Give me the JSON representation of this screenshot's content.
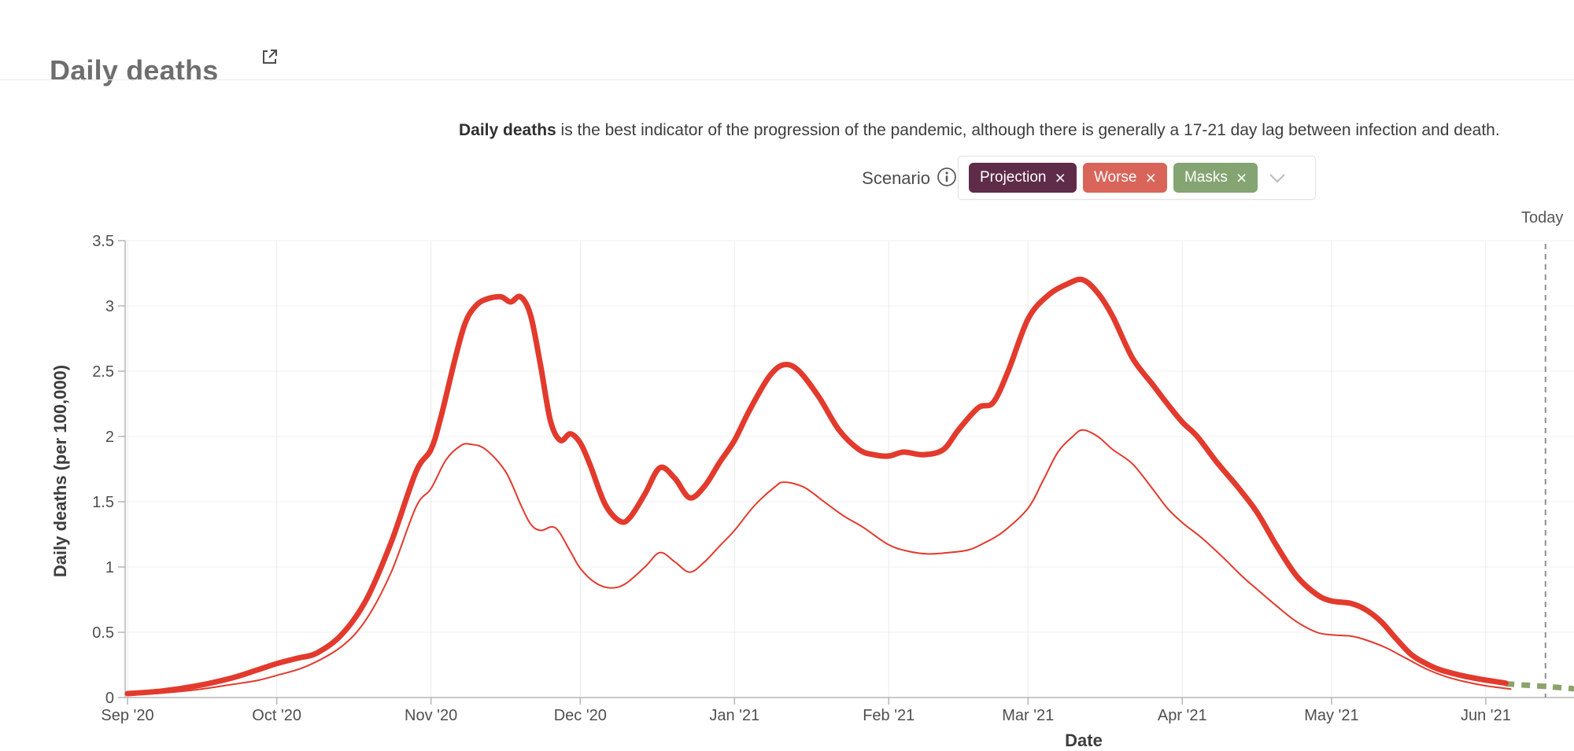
{
  "header": {
    "title": "Daily deaths"
  },
  "description": {
    "bold": "Daily deaths",
    "rest": " is the best indicator of the progression of the pandemic, although there is generally a 17-21 day lag between infection and death."
  },
  "scenario": {
    "label": "Scenario",
    "tags": [
      {
        "label": "Projection",
        "remove_icon": "×",
        "color": "#5e2b49"
      },
      {
        "label": "Worse",
        "remove_icon": "×",
        "color": "#d9655a"
      },
      {
        "label": "Masks",
        "remove_icon": "×",
        "color": "#84a471"
      }
    ]
  },
  "chart_data": {
    "type": "line",
    "title": "Daily deaths",
    "xlabel": "Date",
    "ylabel": "Daily deaths (per 100,000)",
    "ylim": [
      0,
      3.5
    ],
    "yticks": [
      0,
      0.5,
      1,
      1.5,
      2,
      2.5,
      3,
      3.5
    ],
    "grid": true,
    "today_label": "Today",
    "today_day": 285,
    "x_ticks": [
      {
        "label": "Sep '20",
        "day": 0
      },
      {
        "label": "Oct '20",
        "day": 30
      },
      {
        "label": "Nov '20",
        "day": 61
      },
      {
        "label": "Dec '20",
        "day": 91
      },
      {
        "label": "Jan '21",
        "day": 122
      },
      {
        "label": "Feb '21",
        "day": 153
      },
      {
        "label": "Mar '21",
        "day": 181
      },
      {
        "label": "Apr '21",
        "day": 212
      },
      {
        "label": "May '21",
        "day": 242
      },
      {
        "label": "Jun '21",
        "day": 273
      }
    ],
    "series": [
      {
        "name": "Masks",
        "color": "#8da26b",
        "style": "dashed-thick",
        "points": [
          [
            277,
            0.105
          ],
          [
            281,
            0.095
          ],
          [
            285,
            0.085
          ],
          [
            289,
            0.073
          ],
          [
            292,
            0.062
          ]
        ]
      },
      {
        "name": "Projection",
        "color": "#e23a2d",
        "style": "solid-thin",
        "points": [
          [
            0,
            0.02
          ],
          [
            7,
            0.035
          ],
          [
            14,
            0.06
          ],
          [
            21,
            0.1
          ],
          [
            26,
            0.13
          ],
          [
            30,
            0.17
          ],
          [
            36,
            0.24
          ],
          [
            43,
            0.39
          ],
          [
            48,
            0.6
          ],
          [
            53,
            0.96
          ],
          [
            58,
            1.46
          ],
          [
            61,
            1.6
          ],
          [
            64,
            1.82
          ],
          [
            67,
            1.93
          ],
          [
            69,
            1.94
          ],
          [
            72,
            1.9
          ],
          [
            76,
            1.73
          ],
          [
            79,
            1.48
          ],
          [
            81,
            1.33
          ],
          [
            83,
            1.28
          ],
          [
            86,
            1.3
          ],
          [
            89,
            1.12
          ],
          [
            91,
            0.99
          ],
          [
            94,
            0.88
          ],
          [
            97,
            0.84
          ],
          [
            100,
            0.87
          ],
          [
            104,
            1.0
          ],
          [
            107,
            1.11
          ],
          [
            110,
            1.04
          ],
          [
            113,
            0.96
          ],
          [
            116,
            1.04
          ],
          [
            119,
            1.16
          ],
          [
            122,
            1.28
          ],
          [
            126,
            1.47
          ],
          [
            130,
            1.61
          ],
          [
            132,
            1.65
          ],
          [
            136,
            1.61
          ],
          [
            140,
            1.5
          ],
          [
            144,
            1.39
          ],
          [
            148,
            1.3
          ],
          [
            153,
            1.17
          ],
          [
            157,
            1.12
          ],
          [
            161,
            1.1
          ],
          [
            165,
            1.11
          ],
          [
            169,
            1.13
          ],
          [
            172,
            1.18
          ],
          [
            176,
            1.27
          ],
          [
            181,
            1.45
          ],
          [
            184,
            1.66
          ],
          [
            187,
            1.88
          ],
          [
            190,
            2.0
          ],
          [
            192,
            2.05
          ],
          [
            195,
            2.0
          ],
          [
            198,
            1.9
          ],
          [
            202,
            1.79
          ],
          [
            206,
            1.6
          ],
          [
            209,
            1.45
          ],
          [
            212,
            1.34
          ],
          [
            216,
            1.22
          ],
          [
            220,
            1.08
          ],
          [
            224,
            0.93
          ],
          [
            227,
            0.83
          ],
          [
            231,
            0.7
          ],
          [
            235,
            0.58
          ],
          [
            239,
            0.5
          ],
          [
            242,
            0.48
          ],
          [
            246,
            0.47
          ],
          [
            249,
            0.44
          ],
          [
            253,
            0.38
          ],
          [
            257,
            0.3
          ],
          [
            261,
            0.22
          ],
          [
            265,
            0.16
          ],
          [
            269,
            0.12
          ],
          [
            273,
            0.09
          ],
          [
            278,
            0.065
          ]
        ]
      },
      {
        "name": "Worse",
        "color": "#e23a2d",
        "style": "solid-thick",
        "points": [
          [
            0,
            0.03
          ],
          [
            7,
            0.05
          ],
          [
            14,
            0.09
          ],
          [
            21,
            0.15
          ],
          [
            26,
            0.21
          ],
          [
            30,
            0.26
          ],
          [
            34,
            0.3
          ],
          [
            38,
            0.34
          ],
          [
            43,
            0.48
          ],
          [
            48,
            0.75
          ],
          [
            53,
            1.19
          ],
          [
            58,
            1.73
          ],
          [
            61,
            1.9
          ],
          [
            63,
            2.15
          ],
          [
            66,
            2.62
          ],
          [
            68,
            2.88
          ],
          [
            70,
            3.0
          ],
          [
            72,
            3.05
          ],
          [
            75,
            3.07
          ],
          [
            77,
            3.03
          ],
          [
            79,
            3.07
          ],
          [
            81,
            2.93
          ],
          [
            83,
            2.55
          ],
          [
            85,
            2.12
          ],
          [
            87,
            1.97
          ],
          [
            89,
            2.02
          ],
          [
            91,
            1.95
          ],
          [
            93,
            1.78
          ],
          [
            96,
            1.48
          ],
          [
            99,
            1.35
          ],
          [
            101,
            1.38
          ],
          [
            104,
            1.56
          ],
          [
            107,
            1.76
          ],
          [
            110,
            1.68
          ],
          [
            113,
            1.53
          ],
          [
            116,
            1.62
          ],
          [
            119,
            1.8
          ],
          [
            122,
            1.97
          ],
          [
            125,
            2.2
          ],
          [
            129,
            2.46
          ],
          [
            132,
            2.55
          ],
          [
            135,
            2.5
          ],
          [
            139,
            2.3
          ],
          [
            143,
            2.05
          ],
          [
            147,
            1.9
          ],
          [
            150,
            1.86
          ],
          [
            153,
            1.85
          ],
          [
            156,
            1.88
          ],
          [
            160,
            1.86
          ],
          [
            164,
            1.9
          ],
          [
            167,
            2.05
          ],
          [
            171,
            2.22
          ],
          [
            174,
            2.26
          ],
          [
            177,
            2.5
          ],
          [
            181,
            2.9
          ],
          [
            185,
            3.08
          ],
          [
            189,
            3.17
          ],
          [
            192,
            3.2
          ],
          [
            195,
            3.1
          ],
          [
            198,
            2.92
          ],
          [
            202,
            2.6
          ],
          [
            206,
            2.4
          ],
          [
            209,
            2.25
          ],
          [
            212,
            2.11
          ],
          [
            215,
            2.0
          ],
          [
            219,
            1.8
          ],
          [
            223,
            1.62
          ],
          [
            227,
            1.42
          ],
          [
            231,
            1.16
          ],
          [
            235,
            0.93
          ],
          [
            239,
            0.79
          ],
          [
            242,
            0.74
          ],
          [
            246,
            0.72
          ],
          [
            249,
            0.67
          ],
          [
            252,
            0.58
          ],
          [
            255,
            0.45
          ],
          [
            258,
            0.33
          ],
          [
            261,
            0.26
          ],
          [
            264,
            0.21
          ],
          [
            268,
            0.17
          ],
          [
            272,
            0.14
          ],
          [
            277,
            0.11
          ]
        ]
      }
    ]
  },
  "colors": {
    "line_red": "#e23a2d",
    "masks_green": "#8da26b",
    "grid": "#f0f0f0",
    "grid_vertical": "#ebebeb",
    "axis": "#b5b5b5",
    "tick_text": "#4f4f4f",
    "today_line": "#8f8f8f"
  }
}
